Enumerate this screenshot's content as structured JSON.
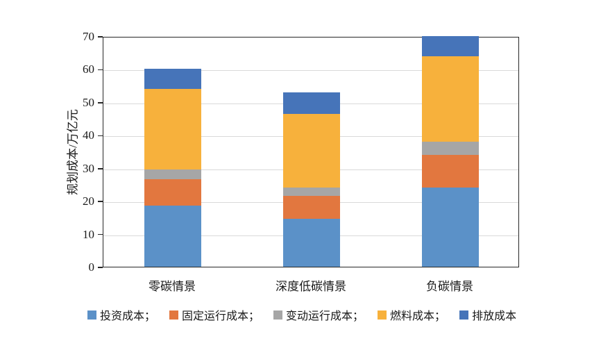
{
  "chart_data": {
    "type": "bar",
    "stacked": true,
    "title": "",
    "xlabel": "",
    "ylabel": "规划成本/万亿元",
    "ylim": [
      0,
      70
    ],
    "ytick_step": 10,
    "grid": "horizontal",
    "legend_position": "bottom",
    "categories": [
      "零碳情景",
      "深度低碳情景",
      "负碳情景"
    ],
    "series": [
      {
        "name": "投资成本；",
        "legend_label": "投资成本；",
        "color": "#5B91C8",
        "values": [
          18.5,
          14.5,
          24
        ]
      },
      {
        "name": "固定运行成本；",
        "legend_label": "固定运行成本；",
        "color": "#E2773F",
        "values": [
          8,
          7,
          10
        ]
      },
      {
        "name": "变动运行成本；",
        "legend_label": "变动运行成本；",
        "color": "#A6A6A6",
        "values": [
          3,
          2.5,
          4
        ]
      },
      {
        "name": "燃料成本；",
        "legend_label": "燃料成本；",
        "color": "#F7B13C",
        "values": [
          24.5,
          22.5,
          26
        ]
      },
      {
        "name": "排放成本",
        "legend_label": "排放成本",
        "color": "#4674B9",
        "values": [
          6,
          6.5,
          6
        ]
      }
    ],
    "stack_totals": [
      60,
      53,
      70
    ],
    "axis_color": "#262626",
    "gridline_color": "#d9d9d9",
    "text_color": "#1a1a1a"
  }
}
